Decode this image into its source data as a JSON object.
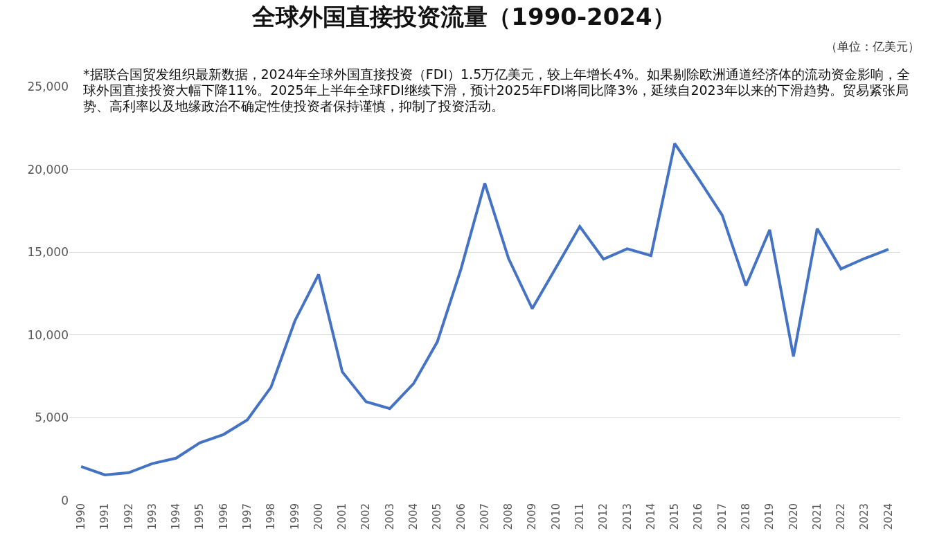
{
  "chart_data": {
    "type": "line",
    "title": "全球外国直接投资流量（1990-2024）",
    "annotations": [
      "（单位：亿美元）",
      "*据联合国贸发组织最新数据，2024年全球外国直接投资（FDI）1.5万亿美元，较上年增长4%。如果剔除欧洲通道经济体的流动资金影响，全球外国直接投资大幅下降11%。2025年上半年全球FDI继续下滑，预计2025年FDI将同比降3%，延续自2023年以来的下滑趋势。贸易紧张局势、高利率以及地缘政治不确定性使投资者保持谨慎，抑制了投资活动。"
    ],
    "categories": [
      "1990",
      "1991",
      "1992",
      "1993",
      "1994",
      "1995",
      "1996",
      "1997",
      "1998",
      "1999",
      "2000",
      "2001",
      "2002",
      "2003",
      "2004",
      "2005",
      "2006",
      "2007",
      "2008",
      "2009",
      "2010",
      "2011",
      "2012",
      "2013",
      "2014",
      "2015",
      "2016",
      "2017",
      "2018",
      "2019",
      "2020",
      "2021",
      "2022",
      "2023",
      "2024"
    ],
    "series": [
      {
        "color": "#4472c4",
        "values": [
          2050,
          1550,
          1680,
          2230,
          2560,
          3490,
          3990,
          4870,
          6850,
          10840,
          13650,
          7770,
          5970,
          5550,
          7060,
          9580,
          13990,
          19160,
          14620,
          11590,
          14070,
          16550,
          14580,
          15200,
          14790,
          21560,
          19430,
          17230,
          12980,
          16350,
          8700,
          16420,
          13990,
          14620,
          15170
        ]
      }
    ],
    "ylim": [
      0,
      25000
    ],
    "yticks": [
      {
        "value": 0,
        "label": "0"
      },
      {
        "value": 5000,
        "label": "5,000"
      },
      {
        "value": 10000,
        "label": "10,000"
      },
      {
        "value": 15000,
        "label": "15,000"
      },
      {
        "value": 20000,
        "label": "20,000"
      },
      {
        "value": 25000,
        "label": "25,000"
      }
    ],
    "grid": "y",
    "marker": "none",
    "line_style": "solid"
  }
}
